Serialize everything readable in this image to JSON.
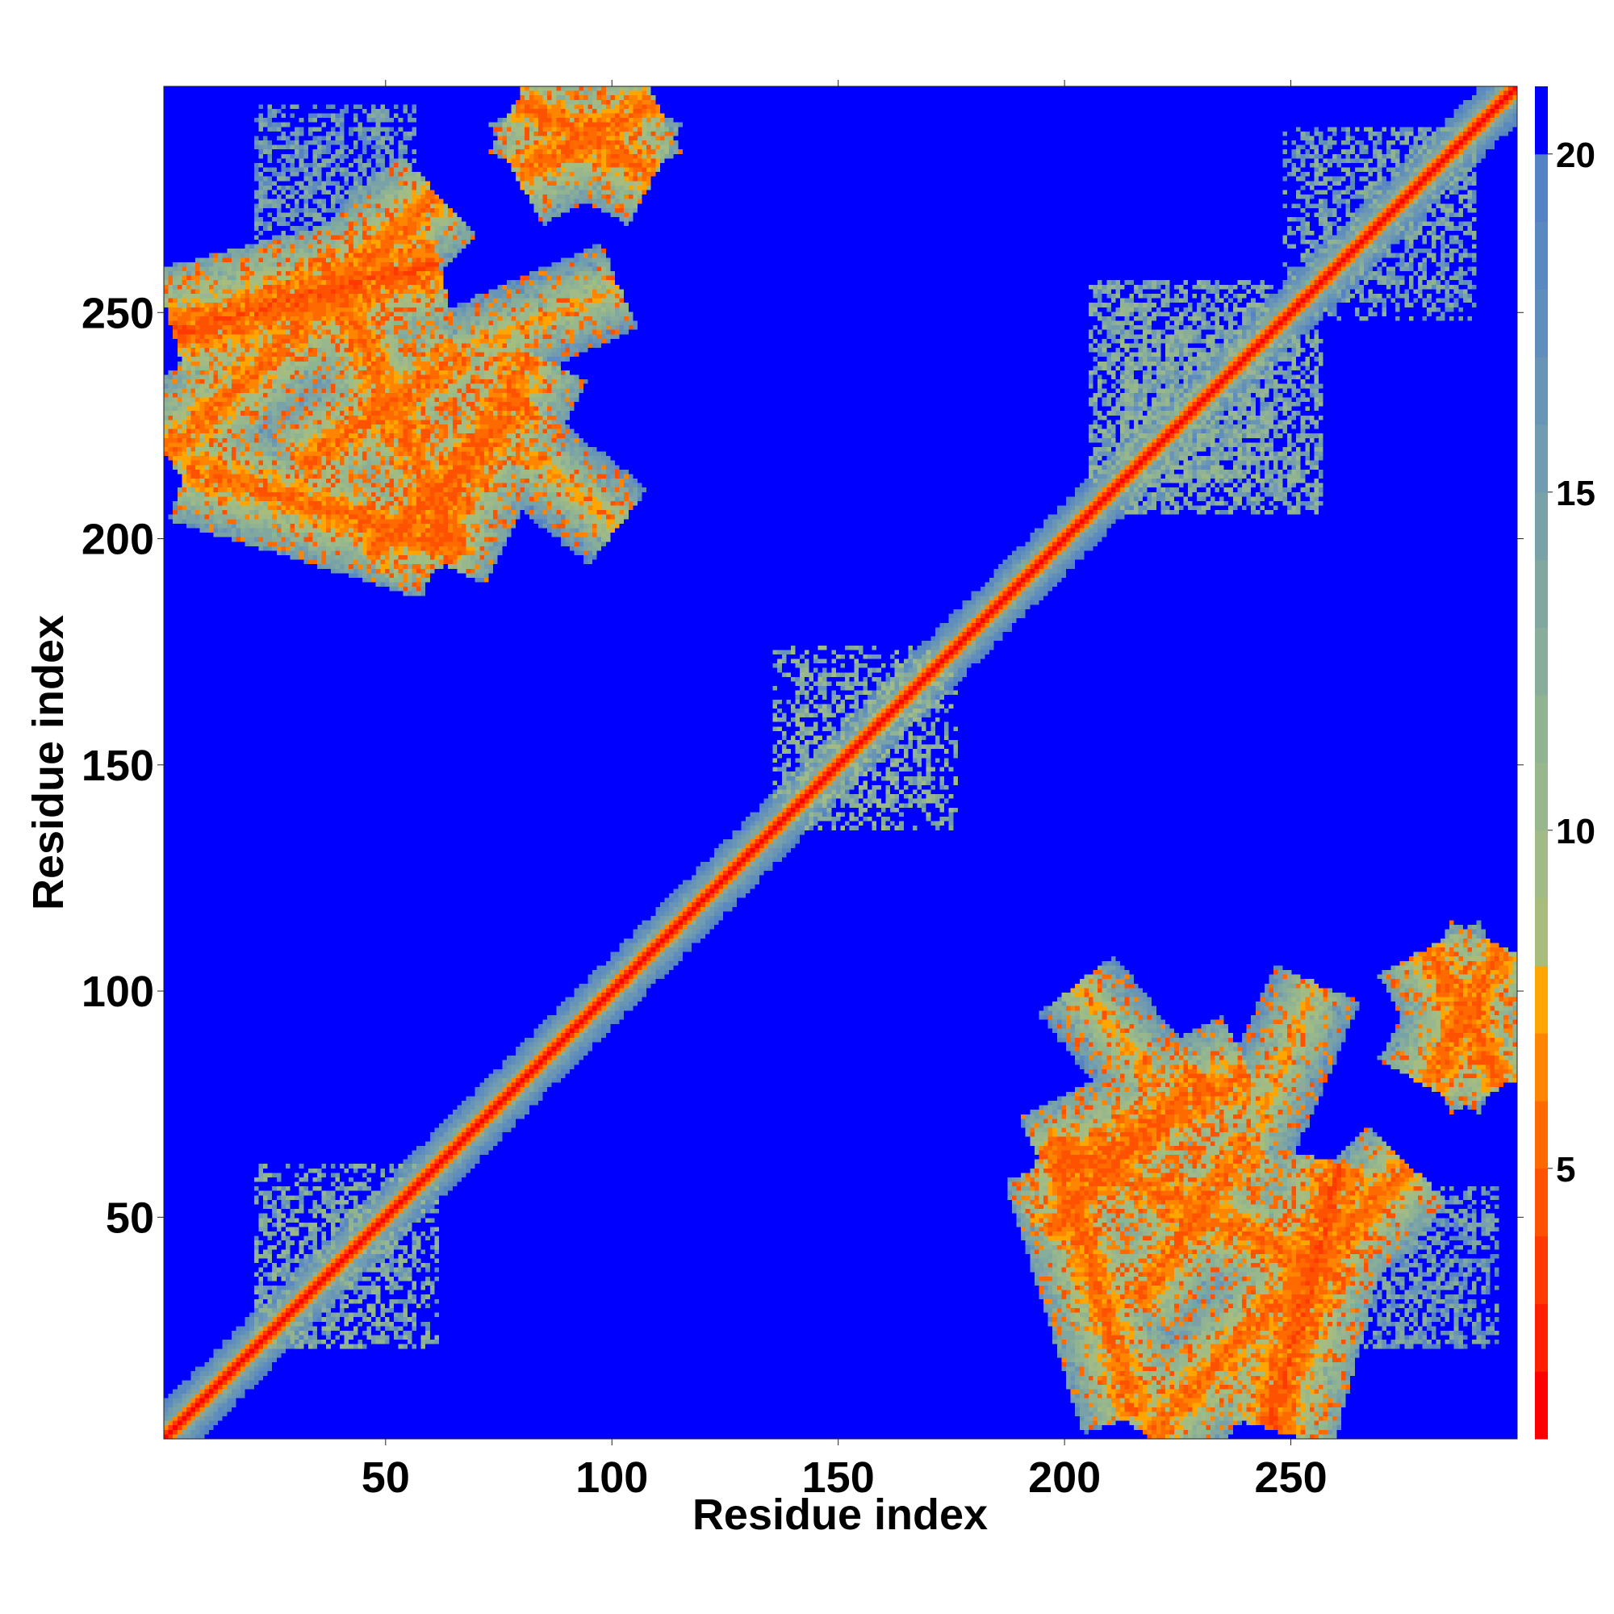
{
  "chart_data": {
    "type": "heatmap",
    "title": "",
    "xlabel": "Residue index",
    "ylabel": "Residue index",
    "xlim": [
      1,
      300
    ],
    "ylim": [
      1,
      300
    ],
    "x_ticks": [
      50,
      100,
      150,
      200,
      250
    ],
    "y_ticks": [
      50,
      100,
      150,
      200,
      250
    ],
    "grid": false,
    "colorbar": {
      "position": "right",
      "ticks": [
        5,
        10,
        15,
        20
      ],
      "range": [
        1,
        21
      ],
      "color_levels": [
        {
          "min": 1,
          "max": 2,
          "color": "#ff0000"
        },
        {
          "min": 2,
          "max": 3,
          "color": "#ff2000"
        },
        {
          "min": 3,
          "max": 4,
          "color": "#ff3a00"
        },
        {
          "min": 4,
          "max": 5,
          "color": "#ff5200"
        },
        {
          "min": 5,
          "max": 6,
          "color": "#ff6a00"
        },
        {
          "min": 6,
          "max": 7,
          "color": "#ff8400"
        },
        {
          "min": 7,
          "max": 8,
          "color": "#ffa500"
        },
        {
          "min": 8,
          "max": 9,
          "color": "#a8bd7c"
        },
        {
          "min": 9,
          "max": 10,
          "color": "#a0bb86"
        },
        {
          "min": 10,
          "max": 11,
          "color": "#98b78c"
        },
        {
          "min": 11,
          "max": 12,
          "color": "#90b492"
        },
        {
          "min": 12,
          "max": 13,
          "color": "#88ad9a"
        },
        {
          "min": 13,
          "max": 14,
          "color": "#80a8a0"
        },
        {
          "min": 14,
          "max": 15,
          "color": "#78a2a8"
        },
        {
          "min": 15,
          "max": 16,
          "color": "#709bb0"
        },
        {
          "min": 16,
          "max": 17,
          "color": "#6894b6"
        },
        {
          "min": 17,
          "max": 18,
          "color": "#608ebc"
        },
        {
          "min": 18,
          "max": 19,
          "color": "#5a88c0"
        },
        {
          "min": 19,
          "max": 20,
          "color": "#5582c4"
        },
        {
          "min": 20,
          "max": 21,
          "color": "#0000ff"
        }
      ],
      "background_color": "#0000ff"
    },
    "matrix_description": "Contact distance map (Å scale on colorbar); symmetric about the diagonal",
    "features": [
      {
        "kind": "diagonal",
        "from": 1,
        "to": 300,
        "core_value": 2,
        "halo_width": 8
      },
      {
        "kind": "band",
        "x": [
          2,
          60
        ],
        "y": [
          245,
          260
        ],
        "center_value": 6,
        "width": 14
      },
      {
        "kind": "band",
        "x": [
          5,
          60
        ],
        "y": [
          215,
          198
        ],
        "center_value": 7,
        "width": 12
      },
      {
        "kind": "band",
        "x": [
          35,
          65
        ],
        "y": [
          262,
          195
        ],
        "center_value": 7,
        "width": 12
      },
      {
        "kind": "band",
        "x": [
          45,
          80
        ],
        "y": [
          195,
          230
        ],
        "center_value": 7,
        "width": 12
      },
      {
        "kind": "band",
        "x": [
          75,
          100
        ],
        "y": [
          222,
          202
        ],
        "center_value": 9,
        "width": 10
      },
      {
        "kind": "band",
        "x": [
          78,
          108
        ],
        "y": [
          296,
          280
        ],
        "center_value": 7,
        "width": 12
      },
      {
        "kind": "band",
        "x": [
          196,
          240
        ],
        "y": [
          58,
          80
        ],
        "center_value": 7,
        "width": 14
      },
      {
        "kind": "band",
        "x": [
          215,
          240
        ],
        "y": [
          30,
          65
        ],
        "center_value": 7,
        "width": 12
      },
      {
        "kind": "band",
        "x": [
          218,
          275
        ],
        "y": [
          0,
          60
        ],
        "center_value": 7,
        "width": 12
      },
      {
        "kind": "band",
        "x": [
          240,
          255
        ],
        "y": [
          65,
          100
        ],
        "center_value": 9,
        "width": 10
      },
      {
        "kind": "band",
        "x": [
          280,
          296
        ],
        "y": [
          78,
          108
        ],
        "center_value": 7,
        "width": 12
      },
      {
        "kind": "speckle",
        "x": [
          205,
          245
        ],
        "y": [
          212,
          256
        ],
        "value": 14
      },
      {
        "kind": "speckle",
        "x": [
          212,
          256
        ],
        "y": [
          205,
          245
        ],
        "value": 14
      },
      {
        "kind": "speckle",
        "x": [
          140,
          175
        ],
        "y": [
          135,
          170
        ],
        "value": 13
      },
      {
        "kind": "speckle",
        "x": [
          20,
          55
        ],
        "y": [
          20,
          60
        ],
        "value": 14
      },
      {
        "kind": "speckle",
        "x": [
          260,
          290
        ],
        "y": [
          20,
          50
        ],
        "value": 16
      },
      {
        "kind": "speckle",
        "x": [
          20,
          55
        ],
        "y": [
          260,
          295
        ],
        "value": 16
      },
      {
        "kind": "speckle",
        "x": [
          252,
          290
        ],
        "y": [
          248,
          290
        ],
        "value": 15
      }
    ]
  }
}
